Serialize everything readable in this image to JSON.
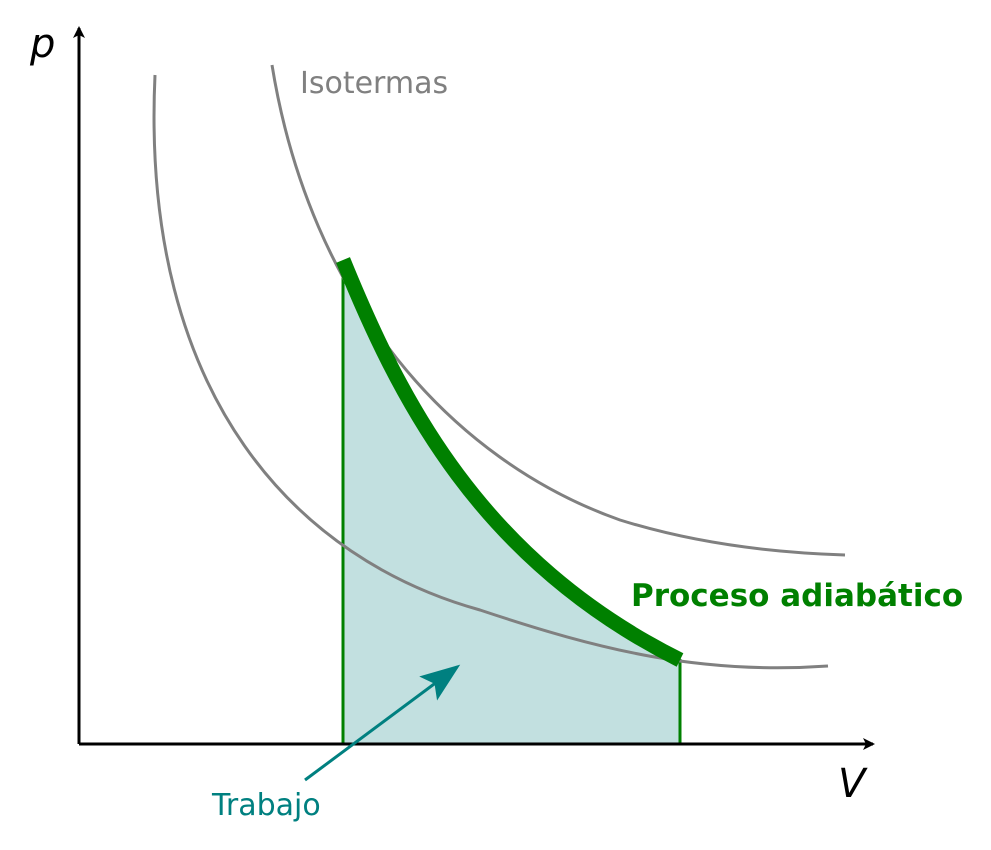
{
  "axes": {
    "y_label": "p",
    "x_label": "V"
  },
  "labels": {
    "isotherms": "Isotermas",
    "process": "Proceso adiabático",
    "work": "Trabajo"
  },
  "colors": {
    "axis": "#000000",
    "isotherm": "#808080",
    "process": "#008000",
    "work_fill": "#c2e0e0",
    "work_border": "#008000",
    "work_label": "#008080",
    "arrow": "#008080"
  }
}
